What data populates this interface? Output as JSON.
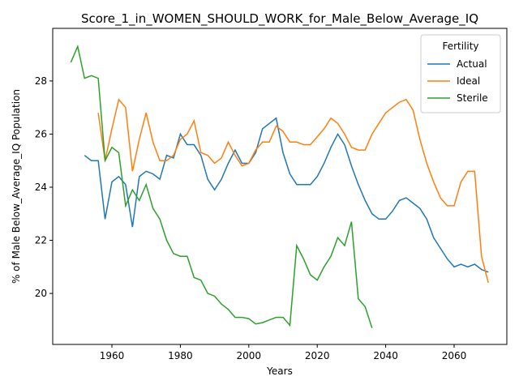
{
  "chart_data": {
    "type": "line",
    "title": "Score_1_in_WOMEN_SHOULD_WORK_for_Male_Below_Average_IQ",
    "xlabel": "Years",
    "ylabel": "% of Male Below_Average_IQ Population",
    "legend_title": "Fertility",
    "legend_loc": "upper right",
    "x": [
      1948,
      1950,
      1952,
      1954,
      1956,
      1958,
      1960,
      1962,
      1964,
      1966,
      1968,
      1970,
      1972,
      1974,
      1976,
      1978,
      1980,
      1982,
      1984,
      1986,
      1988,
      1990,
      1992,
      1994,
      1996,
      1998,
      2000,
      2002,
      2004,
      2006,
      2008,
      2010,
      2012,
      2014,
      2016,
      2018,
      2020,
      2022,
      2024,
      2026,
      2028,
      2030,
      2032,
      2034,
      2036,
      2038,
      2040,
      2042,
      2044,
      2046,
      2048,
      2050,
      2052,
      2054,
      2056,
      2058,
      2060,
      2062,
      2064,
      2066,
      2068,
      2070
    ],
    "series": [
      {
        "name": "Actual",
        "color": "#1f77b4",
        "values": [
          null,
          null,
          25.2,
          25.0,
          25.0,
          22.8,
          24.2,
          24.4,
          24.1,
          22.5,
          24.4,
          24.6,
          24.5,
          24.3,
          25.2,
          25.1,
          26.0,
          25.6,
          25.6,
          25.2,
          24.3,
          23.9,
          24.3,
          24.9,
          25.4,
          24.9,
          24.9,
          25.3,
          26.2,
          26.4,
          26.6,
          25.3,
          24.5,
          24.1,
          24.1,
          24.1,
          24.4,
          24.9,
          25.5,
          26.0,
          25.6,
          24.8,
          24.1,
          23.5,
          23.0,
          22.8,
          22.8,
          23.1,
          23.5,
          23.6,
          23.4,
          23.2,
          22.8,
          22.1,
          21.7,
          21.3,
          21.0,
          21.1,
          21.0,
          21.1,
          20.9,
          20.8
        ]
      },
      {
        "name": "Ideal",
        "color": "#ff7f0e",
        "values": [
          null,
          null,
          null,
          null,
          26.8,
          25.0,
          26.2,
          27.3,
          27.0,
          24.6,
          25.8,
          26.8,
          25.7,
          25.0,
          25.0,
          25.2,
          25.8,
          26.0,
          26.5,
          25.3,
          25.2,
          24.9,
          25.1,
          25.7,
          25.2,
          24.8,
          24.9,
          25.4,
          25.7,
          25.7,
          26.3,
          26.1,
          25.7,
          25.7,
          25.6,
          25.6,
          25.9,
          26.2,
          26.6,
          26.4,
          26.0,
          25.5,
          25.4,
          25.4,
          26.0,
          26.4,
          26.8,
          27.0,
          27.2,
          27.3,
          26.9,
          25.8,
          24.9,
          24.2,
          23.6,
          23.3,
          23.3,
          24.2,
          24.6,
          24.6,
          21.4,
          20.4
        ]
      },
      {
        "name": "Sterile",
        "color": "#2ca02c",
        "values": [
          28.7,
          29.3,
          28.1,
          28.2,
          28.1,
          25.0,
          25.5,
          25.3,
          23.3,
          23.9,
          23.5,
          24.1,
          23.2,
          22.8,
          22.0,
          21.5,
          21.4,
          21.4,
          20.6,
          20.5,
          20.0,
          19.9,
          19.6,
          19.4,
          19.1,
          19.1,
          19.05,
          18.85,
          18.9,
          19.0,
          19.1,
          19.1,
          18.8,
          21.8,
          21.3,
          20.7,
          20.5,
          21.0,
          21.4,
          22.1,
          21.8,
          22.7,
          19.8,
          19.5,
          18.7,
          null,
          null,
          null,
          null,
          null,
          null,
          null,
          null,
          null,
          null,
          null,
          null,
          null,
          null,
          null,
          null,
          null
        ]
      }
    ],
    "xlim": [
      1942.7,
      2075.4
    ],
    "ylim": [
      18.08,
      29.98
    ],
    "xticks": [
      1960,
      1980,
      2000,
      2020,
      2040,
      2060
    ],
    "yticks": [
      20,
      22,
      24,
      26,
      28
    ],
    "grid": false
  }
}
